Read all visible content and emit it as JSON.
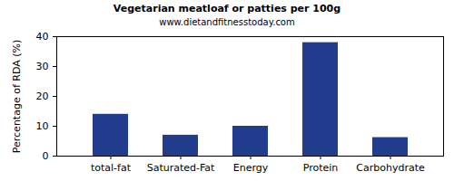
{
  "chart_data": {
    "type": "bar",
    "title": "Vegetarian meatloaf or patties per 100g",
    "subtitle": "www.dietandfitnesstoday.com",
    "y_label": "Percentage of RDA (%)",
    "categories": [
      "total-fat",
      "Saturated-Fat",
      "Energy",
      "Protein",
      "Carbohydrate"
    ],
    "values": [
      14,
      7,
      10,
      38,
      6.2
    ],
    "color": "#233d8e",
    "ylim": [
      0,
      40
    ],
    "yticks": [
      0,
      10,
      20,
      30,
      40
    ],
    "grid": false
  }
}
